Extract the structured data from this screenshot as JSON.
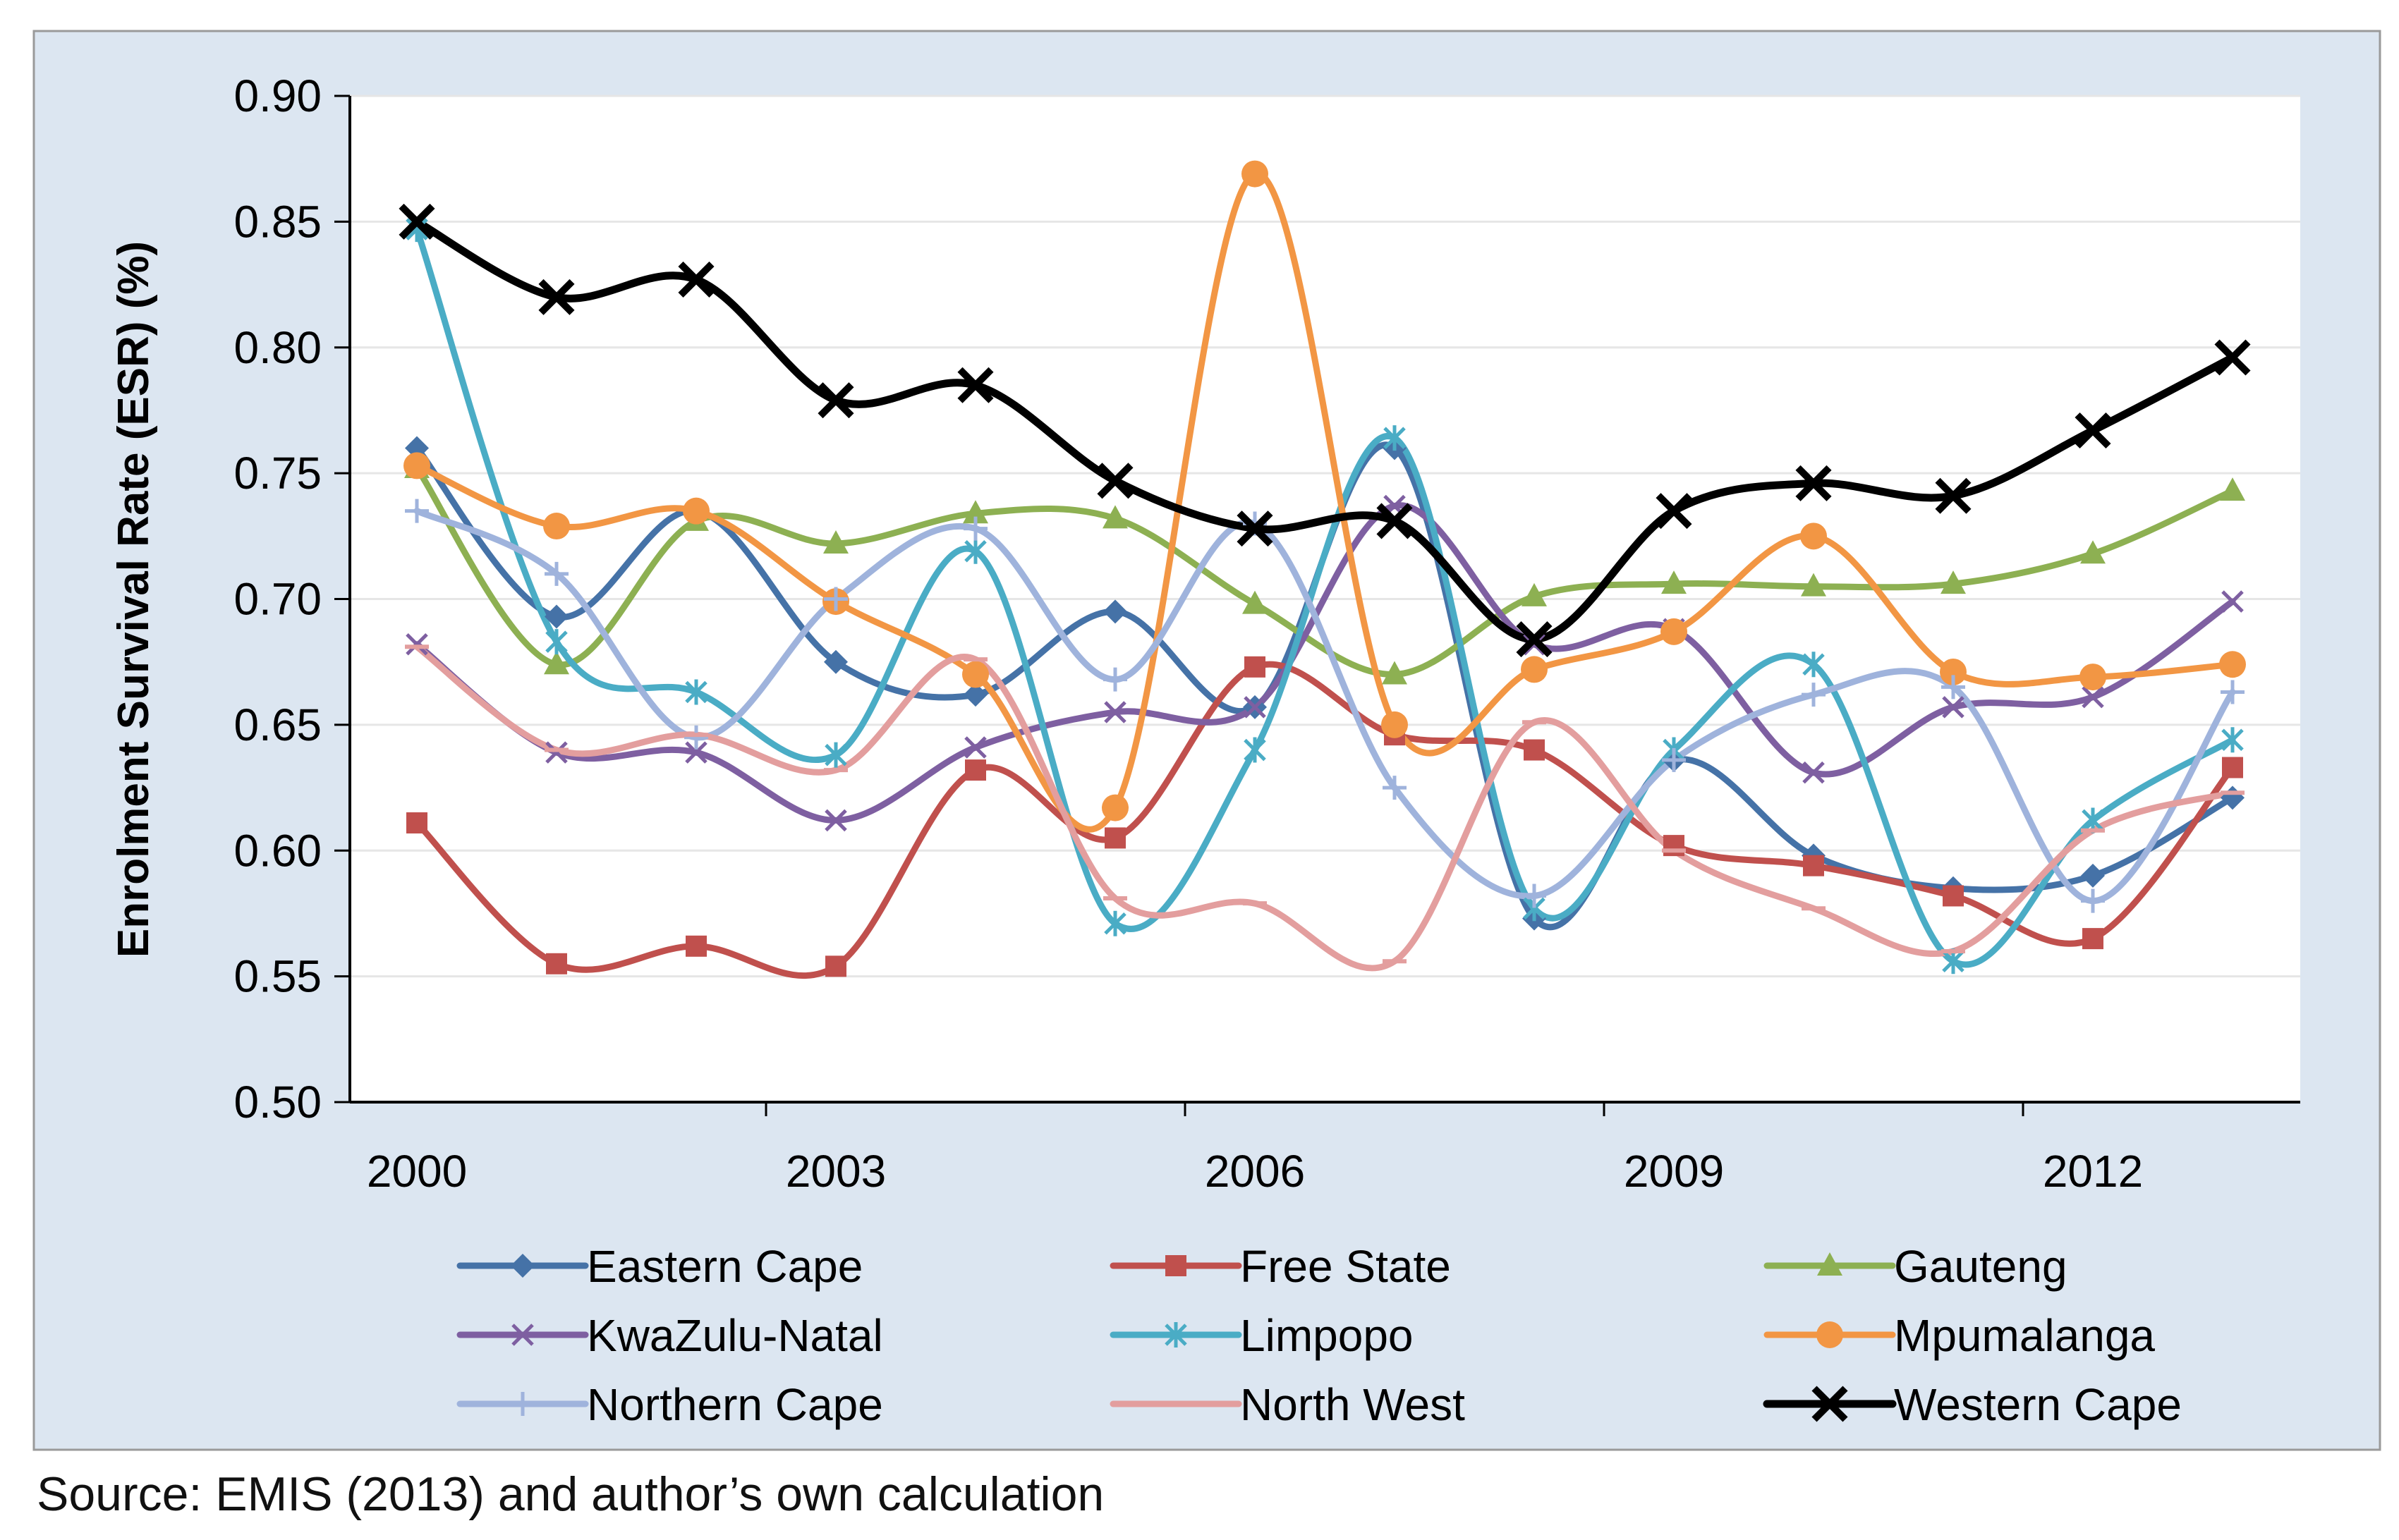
{
  "colors": {
    "panel_background": "#dce6f1",
    "plot_background": "#ffffff",
    "gridline": "#e6e6e6",
    "axis": "#000000"
  },
  "chart_data": {
    "type": "line",
    "title": "",
    "xlabel": "",
    "ylabel": "Enrolment Survival Rate (ESR) (%)",
    "ylim": [
      0.5,
      0.9
    ],
    "yticks": [
      0.5,
      0.55,
      0.6,
      0.65,
      0.7,
      0.75,
      0.8,
      0.85,
      0.9
    ],
    "ytick_labels": [
      "0.50",
      "0.55",
      "0.60",
      "0.65",
      "0.70",
      "0.75",
      "0.80",
      "0.85",
      "0.90"
    ],
    "x_points": [
      2000,
      2001,
      2002,
      2003,
      2004,
      2005,
      2006,
      2007,
      2008,
      2009,
      2010,
      2011,
      2012,
      2013
    ],
    "xticks": [
      2000,
      2003,
      2006,
      2009,
      2012
    ],
    "xtick_labels": [
      "2000",
      "2003",
      "2006",
      "2009",
      "2012"
    ],
    "grid": true,
    "legend_position": "bottom",
    "series": [
      {
        "name": "Eastern Cape",
        "color": "#4572a7",
        "marker": "diamond",
        "values": [
          0.76,
          0.693,
          0.735,
          0.675,
          0.662,
          0.695,
          0.657,
          0.76,
          0.573,
          0.636,
          0.598,
          0.585,
          0.59,
          0.621
        ]
      },
      {
        "name": "Free State",
        "color": "#c0504d",
        "marker": "square",
        "values": [
          0.611,
          0.555,
          0.562,
          0.554,
          0.632,
          0.605,
          0.673,
          0.646,
          0.64,
          0.602,
          0.594,
          0.582,
          0.565,
          0.633
        ]
      },
      {
        "name": "Gauteng",
        "color": "#8db052",
        "marker": "triangle",
        "values": [
          0.752,
          0.674,
          0.731,
          0.722,
          0.734,
          0.732,
          0.698,
          0.67,
          0.701,
          0.706,
          0.705,
          0.706,
          0.718,
          0.743
        ]
      },
      {
        "name": "KwaZulu-Natal",
        "color": "#7e5fa1",
        "marker": "x",
        "values": [
          0.682,
          0.639,
          0.639,
          0.612,
          0.641,
          0.655,
          0.657,
          0.737,
          0.682,
          0.688,
          0.631,
          0.657,
          0.661,
          0.699
        ]
      },
      {
        "name": "Limpopo",
        "color": "#4aacc5",
        "marker": "star",
        "values": [
          0.847,
          0.683,
          0.663,
          0.638,
          0.719,
          0.571,
          0.64,
          0.764,
          0.577,
          0.64,
          0.674,
          0.556,
          0.612,
          0.644
        ]
      },
      {
        "name": "Mpumalanga",
        "color": "#f29644",
        "marker": "circle",
        "values": [
          0.753,
          0.729,
          0.735,
          0.699,
          0.67,
          0.617,
          0.869,
          0.65,
          0.672,
          0.687,
          0.725,
          0.671,
          0.669,
          0.674
        ]
      },
      {
        "name": "Northern Cape",
        "color": "#9fb3dc",
        "marker": "plus",
        "values": [
          0.735,
          0.71,
          0.645,
          0.7,
          0.728,
          0.668,
          0.73,
          0.625,
          0.582,
          0.636,
          0.662,
          0.665,
          0.58,
          0.663
        ]
      },
      {
        "name": "North West",
        "color": "#e39e9e",
        "marker": "dash",
        "values": [
          0.681,
          0.64,
          0.646,
          0.632,
          0.676,
          0.581,
          0.579,
          0.556,
          0.651,
          0.6,
          0.577,
          0.56,
          0.608,
          0.623
        ]
      },
      {
        "name": "Western Cape",
        "color": "#000000",
        "marker": "bigx",
        "values": [
          0.85,
          0.82,
          0.827,
          0.779,
          0.785,
          0.747,
          0.728,
          0.731,
          0.684,
          0.735,
          0.746,
          0.741,
          0.767,
          0.796
        ]
      }
    ]
  },
  "source": "Source: EMIS (2013) and author’s own calculation"
}
